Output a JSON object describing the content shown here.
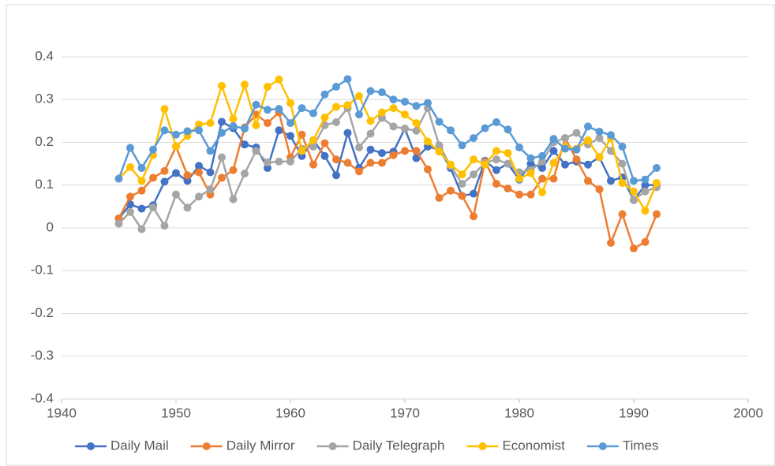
{
  "chart_data": {
    "type": "line",
    "x": [
      1945,
      1946,
      1947,
      1948,
      1949,
      1950,
      1951,
      1952,
      1953,
      1954,
      1955,
      1956,
      1957,
      1958,
      1959,
      1960,
      1961,
      1962,
      1963,
      1964,
      1965,
      1966,
      1967,
      1968,
      1969,
      1970,
      1971,
      1972,
      1973,
      1974,
      1975,
      1976,
      1977,
      1978,
      1979,
      1980,
      1981,
      1982,
      1983,
      1984,
      1985,
      1986,
      1987,
      1988,
      1989,
      1990,
      1991,
      1992
    ],
    "xlim": [
      1940,
      2000
    ],
    "xticks": [
      1940,
      1950,
      1960,
      1970,
      1980,
      1990,
      2000
    ],
    "ylim": [
      -0.4,
      0.4
    ],
    "yticks": [
      -0.4,
      -0.3,
      -0.2,
      -0.1,
      0,
      0.1,
      0.2,
      0.3,
      0.4
    ],
    "grid": true,
    "legend": "bottom",
    "series": [
      {
        "name": "Daily Mail",
        "color": "#4472c4",
        "values": [
          0.022,
          0.055,
          0.045,
          0.053,
          0.108,
          0.128,
          0.11,
          0.145,
          0.13,
          0.248,
          0.233,
          0.195,
          0.188,
          0.14,
          0.228,
          0.215,
          0.168,
          0.205,
          0.168,
          0.123,
          0.222,
          0.14,
          0.183,
          0.175,
          0.178,
          0.232,
          0.163,
          0.19,
          0.183,
          0.14,
          0.075,
          0.08,
          0.157,
          0.135,
          0.15,
          0.113,
          0.15,
          0.14,
          0.18,
          0.148,
          0.155,
          0.148,
          0.165,
          0.11,
          0.118,
          0.065,
          0.1,
          0.1
        ]
      },
      {
        "name": "Daily Mirror",
        "color": "#ed7d31",
        "values": [
          0.022,
          0.073,
          0.087,
          0.117,
          0.133,
          0.19,
          0.123,
          0.13,
          0.078,
          0.117,
          0.135,
          0.235,
          0.265,
          0.245,
          0.27,
          0.165,
          0.218,
          0.148,
          0.198,
          0.16,
          0.152,
          0.132,
          0.152,
          0.152,
          0.17,
          0.18,
          0.18,
          0.137,
          0.07,
          0.087,
          0.075,
          0.027,
          0.155,
          0.103,
          0.092,
          0.078,
          0.078,
          0.115,
          0.115,
          0.21,
          0.16,
          0.11,
          0.09,
          -0.035,
          0.032,
          -0.048,
          -0.033,
          0.032
        ]
      },
      {
        "name": "Daily Telegraph",
        "color": "#a5a5a5",
        "values": [
          0.01,
          0.037,
          -0.003,
          0.048,
          0.005,
          0.078,
          0.047,
          0.073,
          0.09,
          0.165,
          0.067,
          0.127,
          0.18,
          0.153,
          0.155,
          0.155,
          0.185,
          0.19,
          0.24,
          0.247,
          0.28,
          0.188,
          0.22,
          0.257,
          0.237,
          0.232,
          0.227,
          0.28,
          0.193,
          0.145,
          0.103,
          0.125,
          0.152,
          0.16,
          0.15,
          0.13,
          0.135,
          0.155,
          0.2,
          0.21,
          0.222,
          0.195,
          0.21,
          0.18,
          0.15,
          0.065,
          0.085,
          0.095
        ]
      },
      {
        "name": "Economist",
        "color": "#ffc000",
        "values": [
          0.115,
          0.142,
          0.11,
          0.17,
          0.278,
          0.19,
          0.215,
          0.242,
          0.245,
          0.332,
          0.255,
          0.335,
          0.24,
          0.33,
          0.347,
          0.292,
          0.18,
          0.205,
          0.258,
          0.283,
          0.287,
          0.308,
          0.25,
          0.27,
          0.28,
          0.265,
          0.245,
          0.202,
          0.178,
          0.148,
          0.125,
          0.16,
          0.148,
          0.18,
          0.175,
          0.115,
          0.128,
          0.083,
          0.152,
          0.19,
          0.185,
          0.205,
          0.165,
          0.21,
          0.105,
          0.085,
          0.04,
          0.105
        ]
      },
      {
        "name": "Times",
        "color": "#5b9bd5",
        "values": [
          0.115,
          0.187,
          0.14,
          0.183,
          0.228,
          0.218,
          0.226,
          0.228,
          0.18,
          0.222,
          0.238,
          0.232,
          0.288,
          0.276,
          0.278,
          0.245,
          0.28,
          0.268,
          0.312,
          0.33,
          0.348,
          0.265,
          0.32,
          0.317,
          0.3,
          0.295,
          0.285,
          0.292,
          0.248,
          0.228,
          0.193,
          0.21,
          0.233,
          0.247,
          0.23,
          0.188,
          0.163,
          0.168,
          0.208,
          0.185,
          0.183,
          0.237,
          0.225,
          0.217,
          0.19,
          0.11,
          0.113,
          0.14
        ]
      }
    ]
  }
}
